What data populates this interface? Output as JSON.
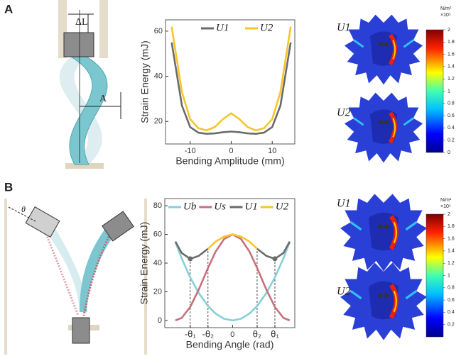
{
  "panels": [
    "A",
    "B"
  ],
  "illustration_labels": {
    "delta": "ΔL",
    "amplitude": "A",
    "angle": "θ"
  },
  "fem_labels": [
    "U1",
    "U2",
    "U1",
    "U2"
  ],
  "colorbars": [
    {
      "unit": "N/m²",
      "scale": "×10⁵",
      "range": [
        0,
        2
      ],
      "ticks": [
        0,
        0.2,
        0.4,
        0.6,
        0.8,
        1,
        1.2,
        1.4,
        1.6,
        1.8,
        2
      ]
    },
    {
      "unit": "N/m²",
      "scale": "×10⁵",
      "range": [
        0,
        2
      ],
      "ticks": [
        0.2,
        0.4,
        0.6,
        0.8,
        1,
        1.2,
        1.4,
        1.6,
        1.8,
        2
      ]
    }
  ],
  "chart_data": [
    {
      "type": "line",
      "y_label": "Strain Energy (mJ)",
      "x_label": "Bending Amplitude (mm)",
      "x": [
        -14.5,
        -12,
        -10,
        -8,
        -6,
        -4,
        -2,
        0,
        2,
        4,
        6,
        8,
        10,
        12,
        14.5
      ],
      "series": [
        {
          "name": "U1",
          "color": "#6b6b6b",
          "values": [
            55,
            27,
            17.5,
            15,
            14.5,
            14.7,
            15.2,
            15.5,
            15.2,
            14.7,
            14.5,
            15,
            17.5,
            27,
            55
          ]
        },
        {
          "name": "U2",
          "color": "#f7c52b",
          "values": [
            62,
            33,
            21,
            17,
            16,
            17.5,
            21,
            23.6,
            21,
            17.5,
            16,
            17,
            21,
            33,
            62
          ]
        }
      ],
      "xlim": [
        -16,
        15.5
      ],
      "ylim": [
        10,
        65
      ],
      "xticks": [
        -10,
        0,
        10
      ],
      "yticks": [
        20,
        40,
        60
      ],
      "legend": "top"
    },
    {
      "type": "line",
      "y_label": "Strain Energy (mJ)",
      "x_label": "Bending Angle (rad)",
      "x": [
        -1.35,
        -1.2,
        -1,
        -0.8,
        -0.58,
        -0.4,
        -0.2,
        0,
        0.2,
        0.4,
        0.58,
        0.8,
        1,
        1.2,
        1.35
      ],
      "series": [
        {
          "name": "Ub",
          "color": "#86d0d6",
          "values": [
            54.7,
            43.2,
            30,
            19.2,
            10.1,
            4.8,
            1.2,
            0,
            1.2,
            4.8,
            10.1,
            19.2,
            30,
            43.2,
            54.7
          ]
        },
        {
          "name": "Us",
          "color": "#c8707c",
          "values": [
            0,
            1.8,
            9.4,
            21.4,
            36.6,
            48,
            56.8,
            60,
            56.8,
            48,
            36.6,
            21.4,
            9.4,
            1.8,
            0
          ]
        },
        {
          "name": "U1",
          "color": "#6b6b6b",
          "values": [
            55,
            47,
            43,
            45,
            50,
            null,
            null,
            null,
            null,
            null,
            50,
            45,
            43,
            47,
            55
          ]
        },
        {
          "name": "U2",
          "color": "#f7c52b",
          "values": [
            null,
            null,
            null,
            null,
            50,
            55,
            58.5,
            60,
            58.5,
            55,
            50,
            null,
            null,
            null,
            null
          ]
        }
      ],
      "xlim": [
        -1.6,
        1.47
      ],
      "ylim": [
        -5,
        85
      ],
      "xticks": [
        {
          "value": -1,
          "label": "-θ₁"
        },
        {
          "value": -0.58,
          "label": "-θ₂"
        },
        0,
        {
          "value": 0.58,
          "label": "θ₂"
        },
        {
          "value": 1,
          "label": "θ₁"
        }
      ],
      "yticks": [
        0,
        20,
        40,
        60,
        80
      ],
      "legend": "top"
    }
  ]
}
